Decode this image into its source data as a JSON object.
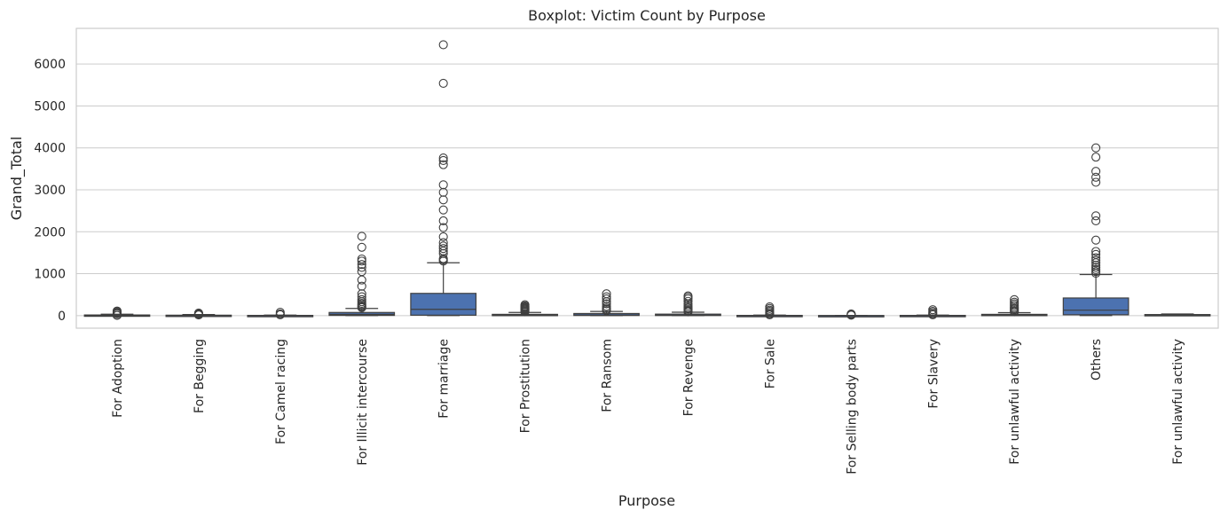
{
  "chart_data": {
    "type": "boxplot",
    "title": "Boxplot: Victim Count by Purpose",
    "xlabel": "Purpose",
    "ylabel": "Grand_Total",
    "ylim": [
      -300,
      6850
    ],
    "yticks": [
      0,
      1000,
      2000,
      3000,
      4000,
      5000,
      6000
    ],
    "grid": true,
    "box_color": "#4c72b0",
    "line_color": "#3f3f3f",
    "categories": [
      "For Adoption",
      "For Begging",
      "For Camel racing",
      "For Illicit intercourse",
      "For marriage",
      "For Prostitution",
      "For Ransom",
      "For Revenge",
      "For Sale",
      "For Selling body parts",
      "For Slavery",
      "For unlawful activity",
      "Others",
      "For unlawful activity"
    ],
    "boxes": [
      {
        "whislo": 0,
        "q1": 0,
        "med": 3,
        "q3": 15,
        "whishi": 35,
        "fliers": [
          45,
          55,
          65,
          80,
          100,
          110,
          5,
          10
        ]
      },
      {
        "whislo": 0,
        "q1": 0,
        "med": 2,
        "q3": 10,
        "whishi": 25,
        "fliers": [
          30,
          40,
          50,
          60,
          20,
          15
        ]
      },
      {
        "whislo": 0,
        "q1": 0,
        "med": 0,
        "q3": 5,
        "whishi": 12,
        "fliers": [
          20,
          40,
          80
        ]
      },
      {
        "whislo": 0,
        "q1": 5,
        "med": 30,
        "q3": 75,
        "whishi": 170,
        "fliers": [
          190,
          210,
          230,
          260,
          290,
          330,
          380,
          450,
          520,
          700,
          850,
          1050,
          1150,
          1220,
          1300,
          1350,
          1630,
          1890
        ]
      },
      {
        "whislo": 0,
        "q1": 10,
        "med": 150,
        "q3": 530,
        "whishi": 1260,
        "fliers": [
          1300,
          1330,
          1360,
          1480,
          1540,
          1600,
          1660,
          1740,
          1880,
          2100,
          2260,
          2520,
          2760,
          2940,
          3120,
          3600,
          3700,
          3760,
          5540,
          6460
        ]
      },
      {
        "whislo": 0,
        "q1": 0,
        "med": 5,
        "q3": 30,
        "whishi": 75,
        "fliers": [
          90,
          110,
          130,
          150,
          170,
          190,
          210,
          230,
          260
        ]
      },
      {
        "whislo": 0,
        "q1": 3,
        "med": 15,
        "q3": 50,
        "whishi": 100,
        "fliers": [
          120,
          150,
          180,
          220,
          280,
          330,
          400,
          450,
          520
        ]
      },
      {
        "whislo": 0,
        "q1": 2,
        "med": 12,
        "q3": 35,
        "whishi": 80,
        "fliers": [
          90,
          110,
          130,
          160,
          190,
          230,
          280,
          340,
          400,
          440,
          470
        ]
      },
      {
        "whislo": 0,
        "q1": 0,
        "med": 0,
        "q3": 5,
        "whishi": 12,
        "fliers": [
          20,
          40,
          70,
          100,
          130,
          170,
          210
        ]
      },
      {
        "whislo": 0,
        "q1": 0,
        "med": 0,
        "q3": 2,
        "whishi": 5,
        "fliers": [
          10,
          20,
          30,
          40
        ]
      },
      {
        "whislo": 0,
        "q1": 0,
        "med": 0,
        "q3": 5,
        "whishi": 12,
        "fliers": [
          20,
          40,
          70,
          100,
          140
        ]
      },
      {
        "whislo": 0,
        "q1": 2,
        "med": 10,
        "q3": 30,
        "whishi": 70,
        "fliers": [
          90,
          110,
          140,
          170,
          200,
          240,
          280,
          320,
          380
        ]
      },
      {
        "whislo": 0,
        "q1": 20,
        "med": 130,
        "q3": 420,
        "whishi": 980,
        "fliers": [
          1010,
          1050,
          1100,
          1150,
          1200,
          1260,
          1320,
          1380,
          1460,
          1530,
          1800,
          2260,
          2380,
          3180,
          3300,
          3440,
          3780,
          4000
        ]
      },
      {
        "whislo": 0,
        "q1": 5,
        "med": 15,
        "q3": 25,
        "whishi": 40,
        "fliers": []
      }
    ]
  }
}
